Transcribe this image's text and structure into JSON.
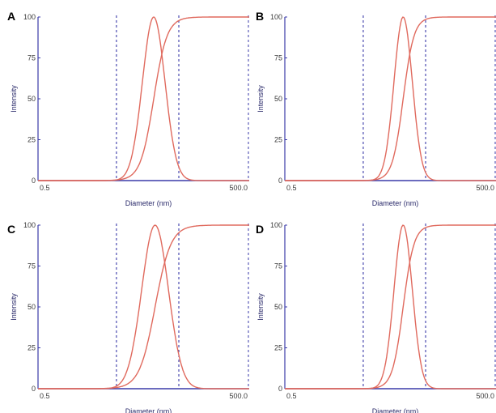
{
  "colors": {
    "axis": "#3a3aa8",
    "guide": "#3a3aa8",
    "curve": "#e06a5e",
    "baseline": "#3a3aa8"
  },
  "chart_data": [
    {
      "panel": "A",
      "type": "line",
      "xlabel": "Diameter (nm)",
      "ylabel": "Intensity",
      "x_scale": "log",
      "xlim": [
        0.5,
        500.0
      ],
      "ylim": [
        0,
        100
      ],
      "x_tick_labels": [
        "0.5",
        "500.0"
      ],
      "y_ticks": [
        0,
        25,
        50,
        75,
        100
      ],
      "guides_x": [
        6.5,
        50
      ],
      "peak": 22,
      "width": 0.16,
      "grid": false,
      "legend": "none"
    },
    {
      "panel": "B",
      "type": "line",
      "xlabel": "Diameter (nm)",
      "ylabel": "Intensity",
      "x_scale": "log",
      "xlim": [
        0.5,
        500.0
      ],
      "ylim": [
        0,
        100
      ],
      "x_tick_labels": [
        "0.5",
        "500.0"
      ],
      "y_ticks": [
        0,
        25,
        50,
        75,
        100
      ],
      "guides_x": [
        6.5,
        50
      ],
      "peak": 24,
      "width": 0.13,
      "grid": false,
      "legend": "none"
    },
    {
      "panel": "C",
      "type": "line",
      "xlabel": "Diameter (nm)",
      "ylabel": "Intensity",
      "x_scale": "log",
      "xlim": [
        0.5,
        500.0
      ],
      "ylim": [
        0,
        100
      ],
      "x_tick_labels": [
        "0.5",
        "500.0"
      ],
      "y_ticks": [
        0,
        25,
        50,
        75,
        100
      ],
      "guides_x": [
        6.5,
        50
      ],
      "peak": 23,
      "width": 0.19,
      "grid": false,
      "legend": "none"
    },
    {
      "panel": "D",
      "type": "line",
      "xlabel": "Diameter (nm)",
      "ylabel": "Intensity",
      "x_scale": "log",
      "xlim": [
        0.5,
        500.0
      ],
      "ylim": [
        0,
        100
      ],
      "x_tick_labels": [
        "0.5",
        "500.0"
      ],
      "y_ticks": [
        0,
        25,
        50,
        75,
        100
      ],
      "guides_x": [
        6.5,
        50
      ],
      "peak": 24,
      "width": 0.13,
      "grid": false,
      "legend": "none"
    }
  ]
}
